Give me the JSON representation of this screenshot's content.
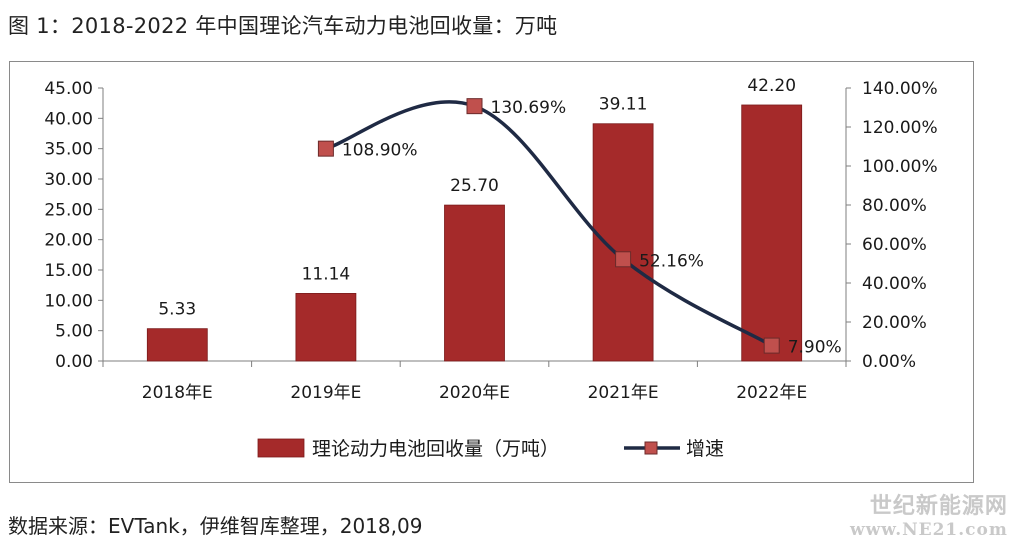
{
  "title": "图 1：2018-2022 年中国理论汽车动力电池回收量：万吨",
  "source": "数据来源：EVTank，伊维智库整理，2018,09",
  "watermark": {
    "line1": "世纪新能源网",
    "line2": "www.NE21.com"
  },
  "colors": {
    "bar": "#a52a2a",
    "bar_stroke": "#7a1a1a",
    "line": "#1f2a44",
    "marker": "#c0504d"
  },
  "chart_data": {
    "type": "bar",
    "title": "",
    "xlabel": "",
    "ylabel": "",
    "categories": [
      "2018年E",
      "2019年E",
      "2020年E",
      "2021年E",
      "2022年E"
    ],
    "series": [
      {
        "name": "理论动力电池回收量（万吨）",
        "type": "bar",
        "axis": "left",
        "values": [
          5.33,
          11.14,
          25.7,
          39.11,
          42.2
        ],
        "labels": [
          "5.33",
          "11.14",
          "25.70",
          "39.11",
          "42.20"
        ]
      },
      {
        "name": "增速",
        "type": "line",
        "axis": "right",
        "values": [
          null,
          108.9,
          130.69,
          52.16,
          7.9
        ],
        "labels": [
          "",
          "108.90%",
          "130.69%",
          "52.16%",
          "7.90%"
        ]
      }
    ],
    "y_left": {
      "ylim": [
        0,
        45
      ],
      "ticks": [
        "0.00",
        "5.00",
        "10.00",
        "15.00",
        "20.00",
        "25.00",
        "30.00",
        "35.00",
        "40.00",
        "45.00"
      ]
    },
    "y_right": {
      "ylim": [
        0,
        140
      ],
      "ticks": [
        "0.00%",
        "20.00%",
        "40.00%",
        "60.00%",
        "80.00%",
        "100.00%",
        "120.00%",
        "140.00%"
      ]
    },
    "grid": false,
    "legend_position": "bottom"
  }
}
